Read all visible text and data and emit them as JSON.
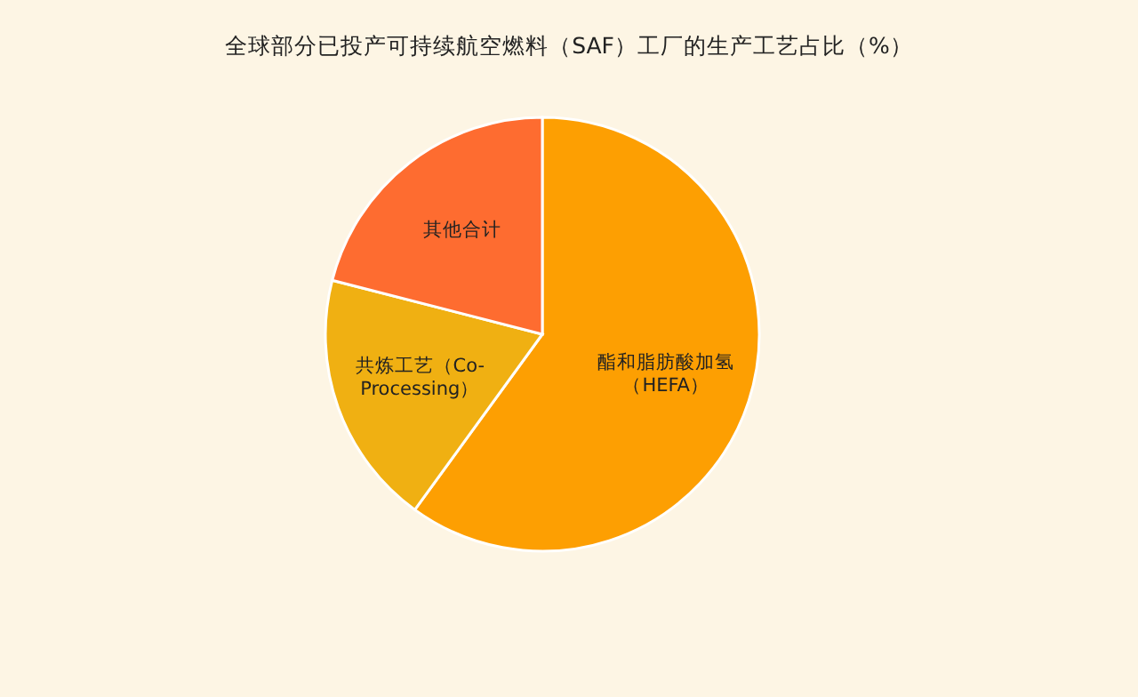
{
  "chart_data": {
    "type": "pie",
    "title": "全球部分已投产可持续航空燃料（SAF）工厂的生产工艺占比（%）",
    "categories": [
      "酯和脂肪酸加氢（HEFA）",
      "共炼工艺（Co-Processing）",
      "其他合计"
    ],
    "values": [
      60,
      19,
      21
    ],
    "colors": [
      "#fd9f02",
      "#f0b012",
      "#fe6c30"
    ]
  }
}
